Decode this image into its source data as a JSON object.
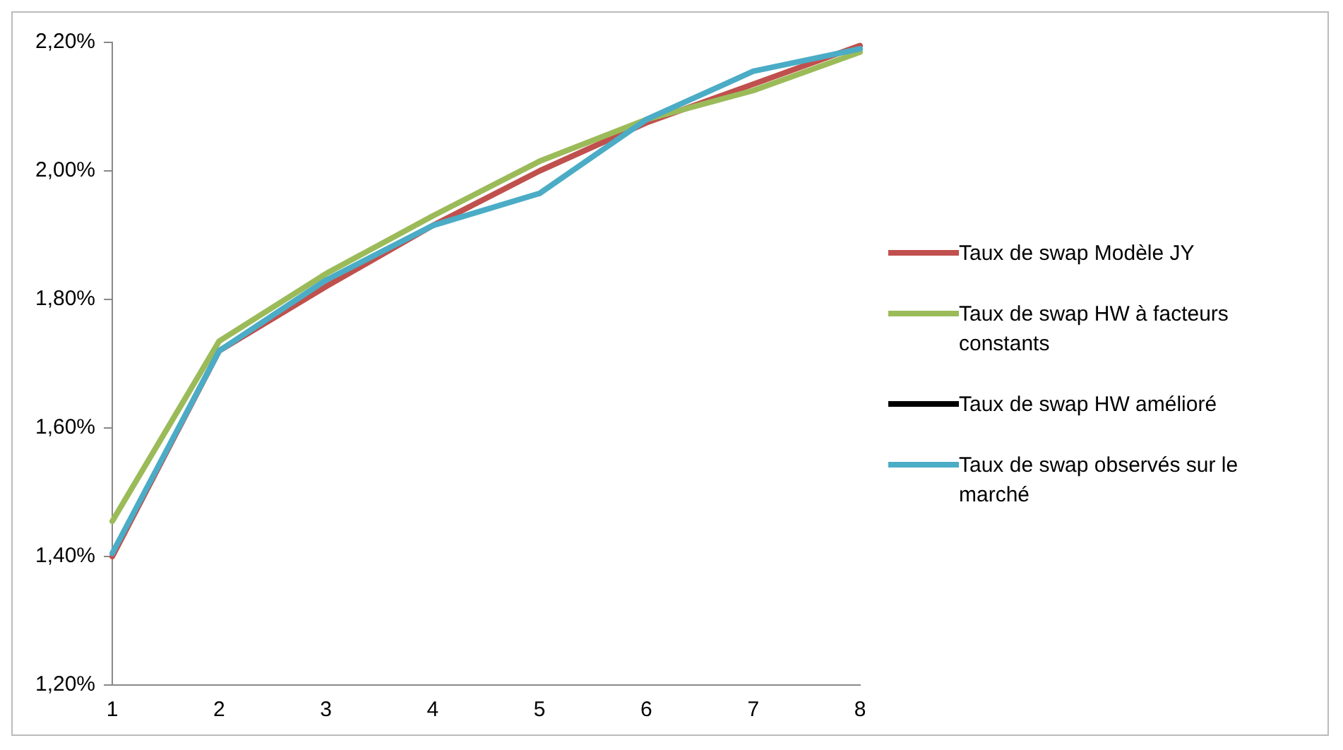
{
  "chart_data": {
    "type": "line",
    "categories": [
      "1",
      "2",
      "3",
      "4",
      "5",
      "6",
      "7",
      "8"
    ],
    "series": [
      {
        "name": "Taux de swap Modèle JY",
        "color": "#c0504d",
        "values": [
          1.4,
          1.72,
          1.82,
          1.915,
          2.0,
          2.075,
          2.135,
          2.195
        ]
      },
      {
        "name": "Taux de swap HW à facteurs constants",
        "color": "#9bbb59",
        "values": [
          1.455,
          1.735,
          1.84,
          1.93,
          2.015,
          2.08,
          2.125,
          2.185
        ]
      },
      {
        "name": "Taux de swap HW amélioré",
        "color": "#000000",
        "values": [
          null,
          null,
          null,
          null,
          null,
          null,
          null,
          null
        ]
      },
      {
        "name": "Taux de swap observés sur le marché",
        "color": "#4bacc6",
        "values": [
          1.405,
          1.72,
          1.83,
          1.915,
          1.965,
          2.08,
          2.155,
          2.19
        ]
      }
    ],
    "ylim": [
      1.2,
      2.2
    ],
    "yticks": [
      {
        "value": 1.2,
        "label": "1,20%"
      },
      {
        "value": 1.4,
        "label": "1,40%"
      },
      {
        "value": 1.6,
        "label": "1,60%"
      },
      {
        "value": 1.8,
        "label": "1,80%"
      },
      {
        "value": 2.0,
        "label": "2,00%"
      },
      {
        "value": 2.2,
        "label": "2,20%"
      }
    ],
    "grid": false,
    "legend": "right",
    "marker": "none",
    "line_style": "solid"
  }
}
